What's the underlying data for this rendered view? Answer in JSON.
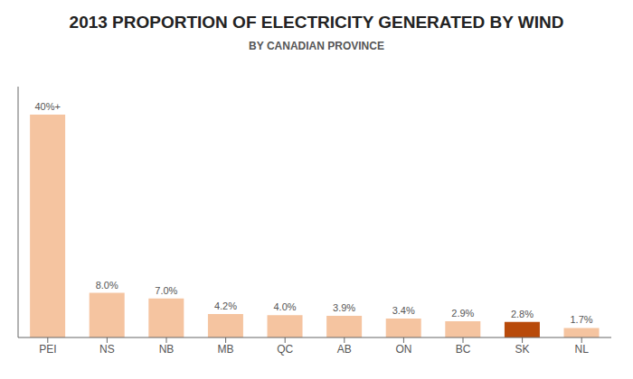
{
  "chart_data": {
    "type": "bar",
    "title": "2013 PROPORTION OF ELECTRICITY GENERATED BY WIND",
    "subtitle": "BY CANADIAN PROVINCE",
    "categories": [
      "PEI",
      "NS",
      "NB",
      "MB",
      "QC",
      "AB",
      "ON",
      "BC",
      "SK",
      "NL"
    ],
    "values": [
      40,
      8.0,
      7.0,
      4.2,
      4.0,
      3.9,
      3.4,
      2.9,
      2.8,
      1.7
    ],
    "value_labels": [
      "40%+",
      "8.0%",
      "7.0%",
      "4.2%",
      "4.0%",
      "3.9%",
      "3.4%",
      "2.9%",
      "2.8%",
      "1.7%"
    ],
    "colors": [
      "#F5C4A0",
      "#F5C4A0",
      "#F5C4A0",
      "#F5C4A0",
      "#F5C4A0",
      "#F5C4A0",
      "#F5C4A0",
      "#F5C4A0",
      "#B84A0A",
      "#F5C4A0"
    ],
    "ylim": [
      0,
      45
    ],
    "data_labels": true,
    "tick_labels": "x",
    "grid": false
  }
}
